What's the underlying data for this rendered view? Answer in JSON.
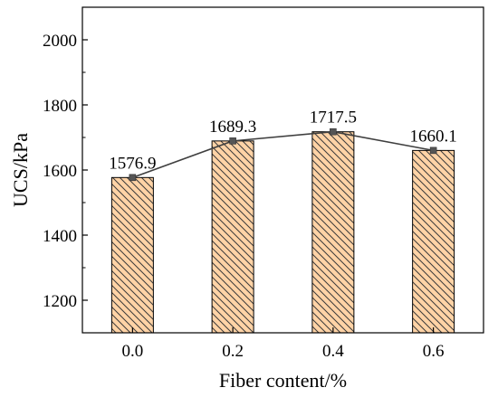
{
  "chart_data": {
    "type": "bar",
    "title": "",
    "xlabel": "Fiber content/%",
    "ylabel": "UCS/kPa",
    "categories": [
      "0.0",
      "0.2",
      "0.4",
      "0.6"
    ],
    "values": [
      1576.9,
      1689.3,
      1717.5,
      1660.1
    ],
    "data_labels": [
      "1576.9",
      "1689.3",
      "1717.5",
      "1660.1"
    ],
    "ylim": [
      1100,
      2100
    ],
    "yticks": [
      1200,
      1400,
      1600,
      1800,
      2000
    ],
    "overlay_line": true,
    "grid": false,
    "legend": "none",
    "colors": {
      "bar_fill": "#FFD3A6",
      "bar_hatch": "#3A3A3A",
      "bar_edge": "#000000",
      "line": "#3F3F3F",
      "marker": "#555555"
    }
  }
}
